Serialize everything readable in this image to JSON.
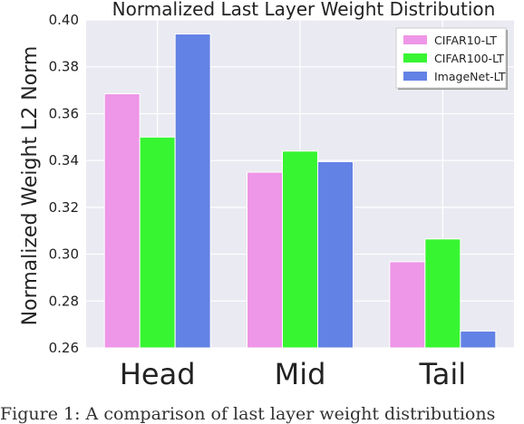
{
  "chart_data": {
    "type": "bar",
    "title": "Normalized Last Layer Weight Distribution",
    "xlabel": "",
    "ylabel": "Normalized Weight L2 Norm",
    "categories": [
      "Head",
      "Mid",
      "Tail"
    ],
    "series": [
      {
        "name": "CIFAR10-LT",
        "color": "#ee96e7",
        "values": [
          0.3685,
          0.335,
          0.2968
        ]
      },
      {
        "name": "CIFAR100-LT",
        "color": "#38f532",
        "values": [
          0.35,
          0.344,
          0.3065
        ]
      },
      {
        "name": "ImageNet-LT",
        "color": "#6382e5",
        "values": [
          0.394,
          0.3395,
          0.2672
        ]
      }
    ],
    "ylim": [
      0.26,
      0.4
    ],
    "yticks": [
      "0.26",
      "0.28",
      "0.30",
      "0.32",
      "0.34",
      "0.36",
      "0.38",
      "0.40"
    ],
    "grid": true,
    "legend": "top-right",
    "plot_background": "#eaeaf2"
  },
  "caption": "Figure 1: A comparison of last layer weight distributions"
}
